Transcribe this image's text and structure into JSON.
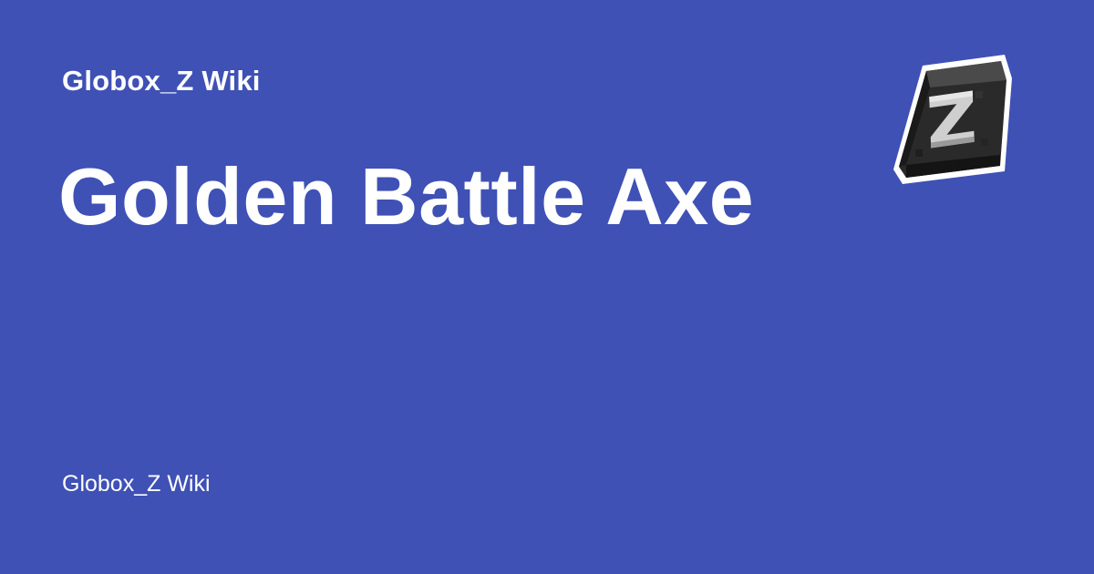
{
  "site": {
    "name_top": "Globox_Z Wiki",
    "name_bottom": "Globox_Z Wiki",
    "logo_letter": "Z",
    "logo_icon": "globox-z-logo-icon"
  },
  "page": {
    "title": "Golden Battle Axe"
  },
  "colors": {
    "background": "#3f51b5",
    "text": "#ffffff"
  }
}
